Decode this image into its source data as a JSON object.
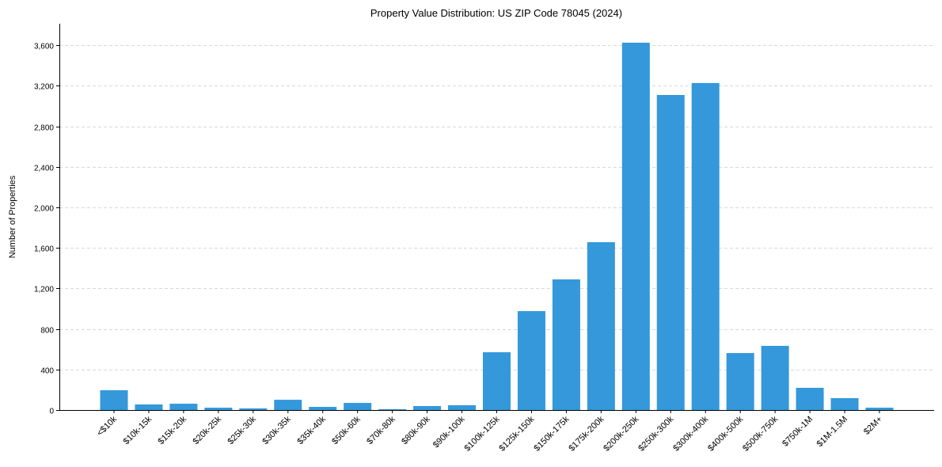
{
  "chart_data": {
    "type": "bar",
    "title": "Property Value Distribution: US ZIP Code 78045 (2024)",
    "xlabel": "",
    "ylabel": "Number of Properties",
    "categories": [
      "<$10k",
      "$10k-15k",
      "$15k-20k",
      "$20k-25k",
      "$25k-30k",
      "$30k-35k",
      "$35k-40k",
      "$50k-60k",
      "$70k-80k",
      "$80k-90k",
      "$90k-100k",
      "$100k-125k",
      "$125k-150k",
      "$150k-175k",
      "$175k-200k",
      "$200k-250k",
      "$250k-300k",
      "$300k-400k",
      "$400k-500k",
      "$500k-750k",
      "$750k-1M",
      "$1M-1.5M",
      "$2M+"
    ],
    "values": [
      195,
      55,
      62,
      23,
      16,
      101,
      31,
      70,
      8,
      39,
      47,
      570,
      976,
      1289,
      1656,
      3625,
      3109,
      3227,
      562,
      633,
      219,
      117,
      23
    ],
    "ylim": [
      0,
      3812
    ],
    "yticks": [
      0,
      400,
      800,
      1200,
      1600,
      2000,
      2400,
      2800,
      3200,
      3600
    ],
    "ytick_labels": [
      "0",
      "400",
      "800",
      "1,200",
      "1,600",
      "2,000",
      "2,400",
      "2,800",
      "3,200",
      "3,600"
    ],
    "grid": "y-dashed",
    "bar_color": "#3498db"
  }
}
